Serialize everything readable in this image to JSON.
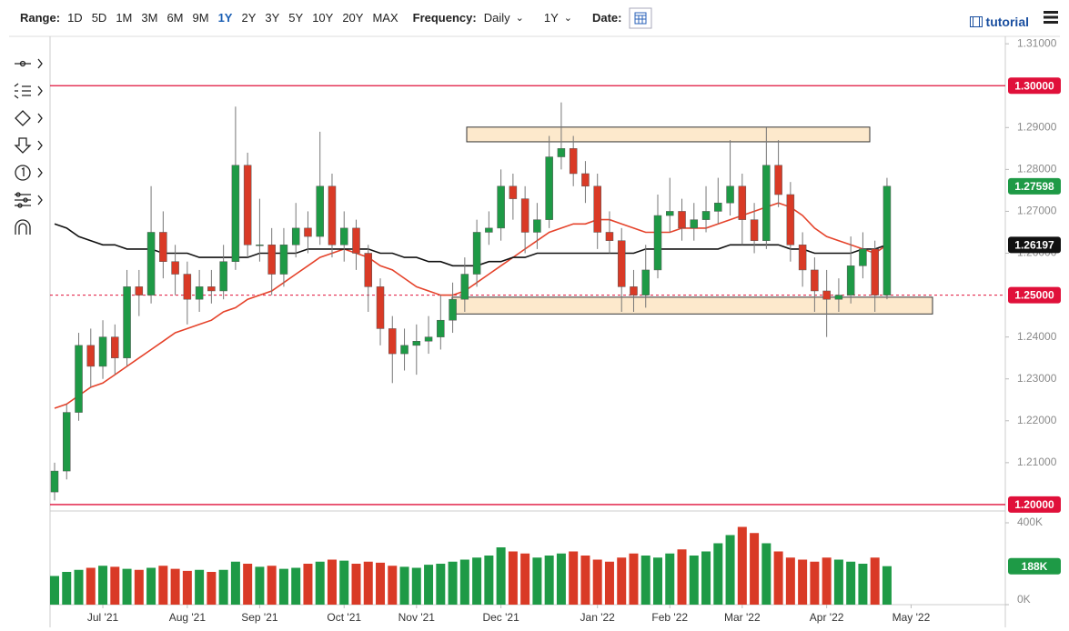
{
  "toolbar": {
    "range_label": "Range:",
    "ranges": [
      "1D",
      "5D",
      "1M",
      "3M",
      "6M",
      "9M",
      "1Y",
      "2Y",
      "3Y",
      "5Y",
      "10Y",
      "20Y",
      "MAX"
    ],
    "active_range": "1Y",
    "frequency_label": "Frequency:",
    "frequency": "Daily",
    "period": "1Y",
    "date_label": "Date:",
    "tutorial": "tutorial"
  },
  "chart_data": {
    "type": "candlestick",
    "categories": [
      null,
      null,
      null,
      null,
      "Jul '21",
      null,
      null,
      null,
      null,
      null,
      null,
      "Aug '21",
      null,
      null,
      null,
      null,
      null,
      "Sep '21",
      null,
      null,
      null,
      null,
      null,
      null,
      "Oct '21",
      null,
      null,
      null,
      null,
      null,
      "Nov '21",
      null,
      null,
      null,
      null,
      null,
      null,
      "Dec '21",
      null,
      null,
      null,
      null,
      null,
      null,
      null,
      "Jan '22",
      null,
      null,
      null,
      null,
      null,
      "Feb '22",
      null,
      null,
      null,
      null,
      null,
      "Mar '22",
      null,
      null,
      null,
      null,
      null,
      null,
      "Apr '22",
      null,
      null,
      null,
      null,
      null,
      null,
      "May '22"
    ],
    "open": [
      1.203,
      1.208,
      1.222,
      1.238,
      1.233,
      1.24,
      1.235,
      1.252,
      1.25,
      1.265,
      1.258,
      1.255,
      1.249,
      1.252,
      1.251,
      1.258,
      1.281,
      1.262,
      1.262,
      1.255,
      1.262,
      1.266,
      1.264,
      1.276,
      1.262,
      1.266,
      1.26,
      1.252,
      1.242,
      1.236,
      1.238,
      1.239,
      1.24,
      1.244,
      1.249,
      1.255,
      1.265,
      1.266,
      1.276,
      1.273,
      1.265,
      1.268,
      1.283,
      1.285,
      1.279,
      1.276,
      1.265,
      1.263,
      1.252,
      1.25,
      1.256,
      1.269,
      1.27,
      1.266,
      1.268,
      1.27,
      1.272,
      1.276,
      1.268,
      1.263,
      1.281,
      1.274,
      1.262,
      1.256,
      1.251,
      1.249,
      1.25,
      1.257,
      1.261,
      1.25,
      null,
      null
    ],
    "high": [
      1.21,
      1.224,
      1.241,
      1.242,
      1.244,
      1.243,
      1.256,
      1.256,
      1.276,
      1.27,
      1.262,
      1.258,
      1.256,
      1.256,
      1.262,
      1.295,
      1.284,
      1.273,
      1.266,
      1.266,
      1.272,
      1.27,
      1.289,
      1.279,
      1.27,
      1.268,
      1.262,
      1.254,
      1.245,
      1.242,
      1.243,
      1.245,
      1.25,
      1.253,
      1.259,
      1.268,
      1.27,
      1.28,
      1.279,
      1.276,
      1.272,
      1.288,
      1.296,
      1.288,
      1.282,
      1.279,
      1.27,
      1.266,
      1.256,
      1.262,
      1.274,
      1.278,
      1.273,
      1.272,
      1.276,
      1.278,
      1.287,
      1.279,
      1.272,
      1.29,
      1.287,
      1.277,
      1.265,
      1.259,
      1.256,
      1.254,
      1.264,
      1.265,
      1.263,
      1.278,
      null,
      null
    ],
    "low": [
      1.201,
      1.206,
      1.22,
      1.228,
      1.23,
      1.231,
      1.233,
      1.245,
      1.248,
      1.254,
      1.25,
      1.243,
      1.246,
      1.248,
      1.249,
      1.256,
      1.259,
      1.258,
      1.25,
      1.252,
      1.259,
      1.26,
      1.262,
      1.259,
      1.258,
      1.256,
      1.246,
      1.238,
      1.229,
      1.232,
      1.231,
      1.236,
      1.237,
      1.241,
      1.246,
      1.252,
      1.262,
      1.263,
      1.268,
      1.26,
      1.261,
      1.266,
      1.28,
      1.276,
      1.272,
      1.261,
      1.26,
      1.246,
      1.246,
      1.247,
      1.254,
      1.265,
      1.263,
      1.263,
      1.265,
      1.267,
      1.269,
      1.262,
      1.26,
      1.261,
      1.271,
      1.258,
      1.252,
      1.246,
      1.24,
      1.246,
      1.248,
      1.254,
      1.246,
      1.249,
      null,
      null
    ],
    "close": [
      1.208,
      1.222,
      1.238,
      1.233,
      1.24,
      1.235,
      1.252,
      1.25,
      1.265,
      1.258,
      1.255,
      1.249,
      1.252,
      1.251,
      1.258,
      1.281,
      1.262,
      1.262,
      1.255,
      1.262,
      1.266,
      1.264,
      1.276,
      1.262,
      1.266,
      1.26,
      1.252,
      1.242,
      1.236,
      1.238,
      1.239,
      1.24,
      1.244,
      1.249,
      1.255,
      1.265,
      1.266,
      1.276,
      1.273,
      1.265,
      1.268,
      1.283,
      1.285,
      1.279,
      1.276,
      1.265,
      1.263,
      1.252,
      1.25,
      1.256,
      1.269,
      1.27,
      1.266,
      1.268,
      1.27,
      1.272,
      1.276,
      1.268,
      1.263,
      1.281,
      1.274,
      1.262,
      1.256,
      1.251,
      1.249,
      1.25,
      1.257,
      1.261,
      1.25,
      1.276,
      null,
      null
    ],
    "up_color": "#1e9a46",
    "down_color": "#d93a26",
    "moving_averages": [
      {
        "color": "#e5432b",
        "values": [
          1.223,
          1.224,
          1.226,
          1.228,
          1.229,
          1.231,
          1.233,
          1.235,
          1.237,
          1.239,
          1.241,
          1.242,
          1.243,
          1.244,
          1.246,
          1.247,
          1.249,
          1.25,
          1.251,
          1.253,
          1.255,
          1.257,
          1.259,
          1.26,
          1.261,
          1.26,
          1.259,
          1.257,
          1.256,
          1.254,
          1.252,
          1.251,
          1.25,
          1.25,
          1.251,
          1.253,
          1.255,
          1.257,
          1.259,
          1.261,
          1.263,
          1.265,
          1.266,
          1.267,
          1.267,
          1.268,
          1.268,
          1.267,
          1.266,
          1.265,
          1.265,
          1.265,
          1.266,
          1.266,
          1.266,
          1.267,
          1.268,
          1.269,
          1.27,
          1.271,
          1.272,
          1.271,
          1.269,
          1.266,
          1.264,
          1.263,
          1.262,
          1.261,
          1.26,
          1.262,
          null,
          null
        ]
      },
      {
        "color": "#111111",
        "values": [
          1.267,
          1.266,
          1.264,
          1.263,
          1.262,
          1.262,
          1.261,
          1.261,
          1.261,
          1.26,
          1.26,
          1.26,
          1.259,
          1.259,
          1.259,
          1.259,
          1.259,
          1.26,
          1.26,
          1.26,
          1.26,
          1.261,
          1.261,
          1.261,
          1.261,
          1.261,
          1.261,
          1.26,
          1.26,
          1.259,
          1.259,
          1.258,
          1.258,
          1.257,
          1.257,
          1.257,
          1.258,
          1.258,
          1.259,
          1.259,
          1.26,
          1.26,
          1.26,
          1.26,
          1.26,
          1.26,
          1.26,
          1.26,
          1.26,
          1.261,
          1.261,
          1.261,
          1.261,
          1.261,
          1.261,
          1.261,
          1.262,
          1.262,
          1.262,
          1.262,
          1.262,
          1.261,
          1.261,
          1.26,
          1.26,
          1.26,
          1.26,
          1.261,
          1.261,
          1.262,
          null,
          null
        ]
      }
    ],
    "ylim": [
      1.1989,
      1.3109
    ],
    "yticks": [
      {
        "value": 1.31,
        "label": "1.31000"
      },
      {
        "value": 1.29,
        "label": "1.29000"
      },
      {
        "value": 1.28,
        "label": "1.28000"
      },
      {
        "value": 1.27,
        "label": "1.27000"
      },
      {
        "value": 1.26,
        "label": "1.26000"
      },
      {
        "value": 1.24,
        "label": "1.24000"
      },
      {
        "value": 1.23,
        "label": "1.23000"
      },
      {
        "value": 1.22,
        "label": "1.22000"
      },
      {
        "value": 1.21,
        "label": "1.21000"
      }
    ],
    "price_lines": [
      {
        "value": 1.3,
        "label": "1.30000",
        "color": "#e0103a",
        "dashed": false
      },
      {
        "value": 1.25,
        "label": "1.25000",
        "color": "#e0103a",
        "dashed": true
      },
      {
        "value": 1.2,
        "label": "1.20000",
        "color": "#e0103a",
        "dashed": false
      }
    ],
    "zones": [
      {
        "low": 1.2866,
        "high": 1.2901,
        "color": "#fde9cc"
      },
      {
        "low": 1.2455,
        "high": 1.2495,
        "color": "#fde9cc"
      }
    ],
    "last_price": {
      "value": 1.27598,
      "label": "1.27598",
      "color": "#1e9a46"
    },
    "ma_last": {
      "value": 1.26197,
      "label": "1.26197",
      "color": "#111111"
    },
    "volume": {
      "ylim": [
        0,
        440000
      ],
      "yticks": [
        {
          "value": 0,
          "label": "0K"
        },
        {
          "value": 400000,
          "label": "400K"
        }
      ],
      "values": [
        140000,
        160000,
        170000,
        180000,
        190000,
        185000,
        175000,
        170000,
        180000,
        190000,
        175000,
        165000,
        170000,
        160000,
        170000,
        210000,
        200000,
        185000,
        190000,
        175000,
        180000,
        200000,
        210000,
        220000,
        215000,
        200000,
        210000,
        205000,
        190000,
        185000,
        180000,
        195000,
        200000,
        210000,
        220000,
        230000,
        240000,
        280000,
        260000,
        250000,
        230000,
        240000,
        250000,
        260000,
        240000,
        220000,
        210000,
        230000,
        250000,
        240000,
        230000,
        250000,
        270000,
        240000,
        260000,
        300000,
        340000,
        380000,
        350000,
        300000,
        260000,
        230000,
        220000,
        210000,
        230000,
        220000,
        210000,
        200000,
        230000,
        188000,
        null,
        null
      ],
      "last": {
        "value": 188000,
        "label": "188K",
        "color": "#1e9a46"
      }
    }
  }
}
